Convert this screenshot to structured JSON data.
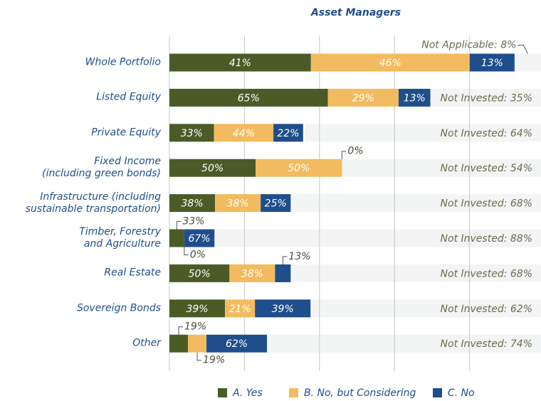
{
  "chart_data": {
    "type": "bar",
    "title": "Asset Managers",
    "categories": [
      "Whole Portfolio",
      "Listed Equity",
      "Private Equity",
      "Fixed Income\n(including green bonds)",
      "Infrastructure (including\nsustainable transportation)",
      "Timber, Forestry\nand Agriculture",
      "Real Estate",
      "Sovereign Bonds",
      "Other"
    ],
    "series": [
      {
        "name": "A. Yes",
        "color": "#4b5b27",
        "values": [
          41,
          65,
          33,
          50,
          38,
          33,
          50,
          39,
          19
        ],
        "value_labels": [
          "41%",
          "65%",
          "33%",
          "50%",
          "38%",
          "33%",
          "50%",
          "39%",
          "19%"
        ]
      },
      {
        "name": "B. No, but Considering",
        "color": "#f3bb5f",
        "values": [
          46,
          29,
          44,
          50,
          38,
          0,
          38,
          21,
          19
        ],
        "value_labels": [
          "46%",
          "29%",
          "44%",
          "50%",
          "38%",
          "0%",
          "38%",
          "21%",
          "19%"
        ]
      },
      {
        "name": "C. No",
        "color": "#1f4e8c",
        "values": [
          13,
          13,
          22,
          0,
          25,
          67,
          13,
          39,
          62
        ],
        "value_labels": [
          "13%",
          "13%",
          "22%",
          "0%",
          "25%",
          "67%",
          "13%",
          "39%",
          "62%"
        ]
      }
    ],
    "remainder": {
      "color": "#f3f4f4",
      "values": [
        8,
        35,
        64,
        54,
        68,
        88,
        68,
        62,
        74
      ],
      "value_labels": [
        "Not Applicable: 8%",
        "Not Invested: 35%",
        "Not Invested: 64%",
        "Not Invested: 54%",
        "Not Invested: 68%",
        "Not Invested: 88%",
        "Not Invested: 68%",
        "Not Invested: 62%",
        "Not Invested: 74%"
      ]
    },
    "xlim": [
      0,
      100
    ],
    "xticks": [
      0,
      20,
      40,
      60,
      80,
      100
    ],
    "grid": true
  }
}
